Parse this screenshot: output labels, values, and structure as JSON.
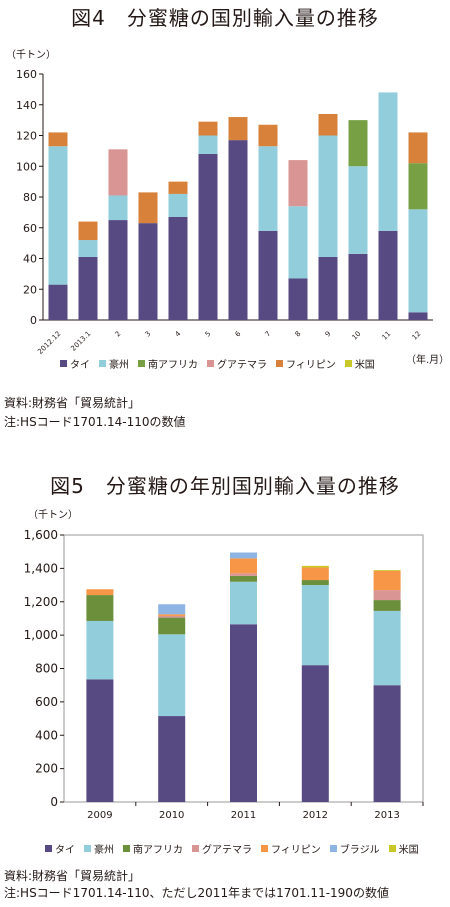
{
  "chart_data": [
    {
      "type": "bar",
      "stacked": true,
      "title": "図4　分蜜糖の国別輸入量の推移",
      "unit_label": "（千トン）",
      "x_unit_label": "（年.月）",
      "categories": [
        "2012.12",
        "2013.1",
        "2",
        "3",
        "4",
        "5",
        "6",
        "7",
        "8",
        "9",
        "10",
        "11",
        "12"
      ],
      "ylim": [
        0,
        160
      ],
      "yticks": [
        0,
        20,
        40,
        60,
        80,
        100,
        120,
        140,
        160
      ],
      "grid": false,
      "legend_position": "bottom",
      "series": [
        {
          "name": "タイ",
          "color": "#574a82",
          "values": [
            23,
            41,
            65,
            63,
            67,
            108,
            117,
            58,
            27,
            41,
            43,
            58,
            5
          ]
        },
        {
          "name": "豪州",
          "color": "#92cddc",
          "values": [
            90,
            11,
            16,
            0,
            15,
            12,
            0,
            55,
            47,
            79,
            57,
            90,
            67
          ]
        },
        {
          "name": "南アフリカ",
          "color": "#77a044",
          "values": [
            0,
            0,
            0,
            0,
            0,
            0,
            0,
            0,
            0,
            0,
            30,
            0,
            30
          ]
        },
        {
          "name": "グアテマラ",
          "color": "#d99594",
          "values": [
            0,
            0,
            30,
            0,
            0,
            0,
            0,
            0,
            30,
            0,
            0,
            0,
            0
          ]
        },
        {
          "name": "フィリピン",
          "color": "#d7813a",
          "values": [
            9,
            12,
            0,
            20,
            8,
            9,
            15,
            14,
            0,
            14,
            0,
            0,
            20
          ]
        },
        {
          "name": "米国",
          "color": "#c8c828",
          "values": [
            0,
            0,
            0,
            0,
            0,
            0,
            0,
            0,
            0,
            0,
            0,
            0,
            0
          ]
        }
      ]
    },
    {
      "type": "bar",
      "stacked": true,
      "title": "図5　分蜜糖の年別国別輸入量の推移",
      "unit_label": "（千トン）",
      "categories": [
        "2009",
        "2010",
        "2011",
        "2012",
        "2013"
      ],
      "ylim": [
        0,
        1600
      ],
      "yticks": [
        "0",
        "200",
        "400",
        "600",
        "800",
        "1,000",
        "1,200",
        "1,400",
        "1,600"
      ],
      "grid": false,
      "legend_position": "bottom",
      "series": [
        {
          "name": "タイ",
          "color": "#574a82",
          "values": [
            735,
            515,
            1065,
            820,
            700
          ]
        },
        {
          "name": "豪州",
          "color": "#92cddc",
          "values": [
            350,
            490,
            255,
            480,
            445
          ]
        },
        {
          "name": "南アフリカ",
          "color": "#6b8f3a",
          "values": [
            155,
            100,
            35,
            30,
            65
          ]
        },
        {
          "name": "グアテマラ",
          "color": "#d99594",
          "values": [
            0,
            10,
            15,
            0,
            60
          ]
        },
        {
          "name": "フィリピン",
          "color": "#f79646",
          "values": [
            35,
            10,
            90,
            75,
            115
          ]
        },
        {
          "name": "ブラジル",
          "color": "#8eb4e3",
          "values": [
            0,
            60,
            35,
            0,
            0
          ]
        },
        {
          "name": "米国",
          "color": "#c8c828",
          "values": [
            0,
            0,
            0,
            10,
            5
          ]
        }
      ]
    }
  ],
  "figure4": {
    "source": "資料:財務省「貿易統計」",
    "note": "注:HSコード1701.14-110の数値"
  },
  "figure5": {
    "source": "資料:財務省「貿易統計」",
    "note": "注:HSコード1701.14-110、ただし2011年までは1701.11-190の数値"
  }
}
